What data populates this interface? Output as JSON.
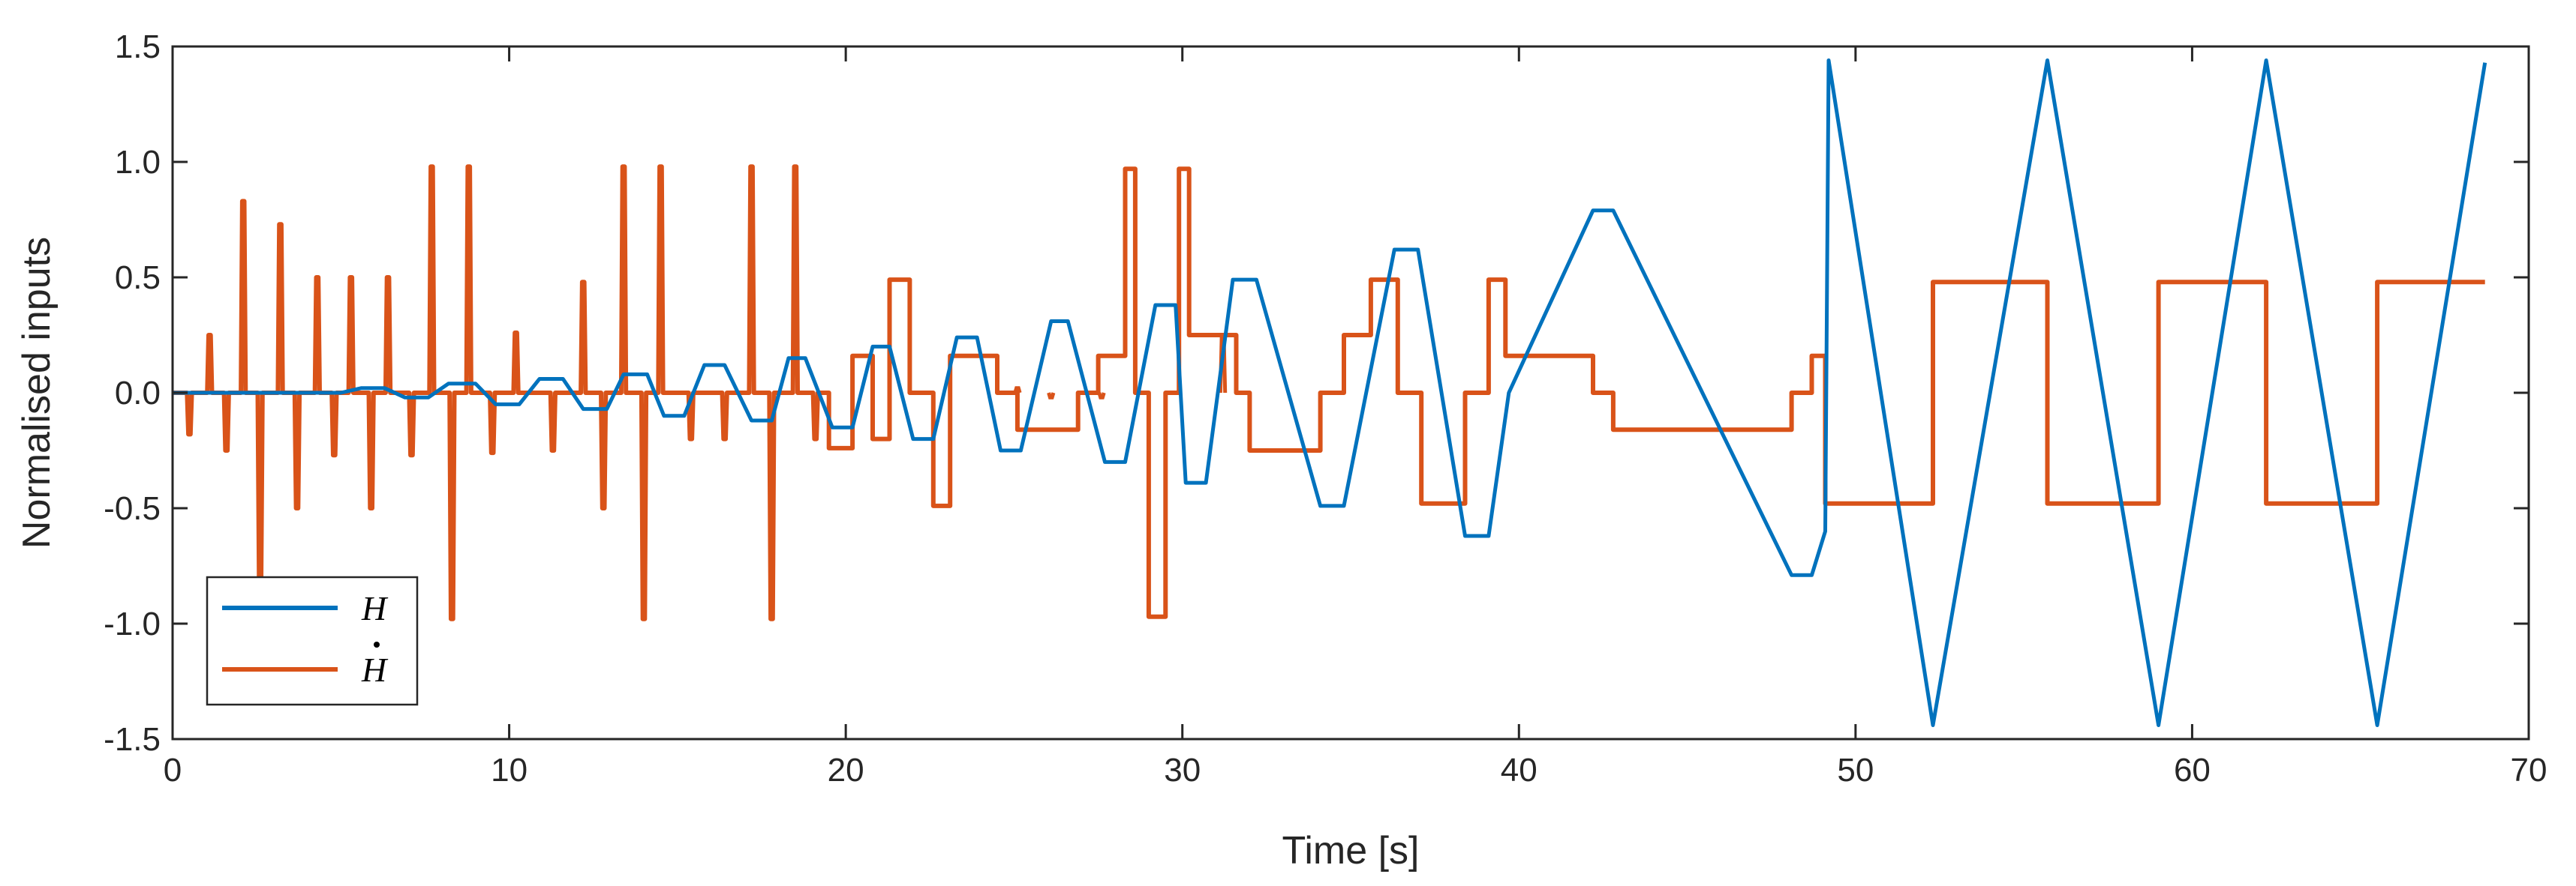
{
  "chart_data": {
    "type": "line",
    "title": "",
    "xlabel": "Time [s]",
    "ylabel": "Normalised inputs",
    "xlim": [
      0,
      70
    ],
    "ylim": [
      -1.5,
      1.5
    ],
    "xticks": [
      0,
      10,
      20,
      30,
      40,
      50,
      60,
      70
    ],
    "xtick_labels": [
      "0",
      "10",
      "20",
      "30",
      "40",
      "50",
      "60",
      "70"
    ],
    "yticks": [
      -1.5,
      -1.0,
      -0.5,
      0.0,
      0.5,
      1.0,
      1.5
    ],
    "ytick_labels": [
      "-1.5",
      "-1.0",
      "-0.5",
      "0.0",
      "0.5",
      "1.0",
      "1.5"
    ],
    "grid": false,
    "legend_location": "bottom-left",
    "series": [
      {
        "name": "H",
        "legend_label": "H",
        "color": "#0072BD",
        "points": [
          [
            0,
            0
          ],
          [
            5,
            0
          ],
          [
            5.6,
            0.02
          ],
          [
            6.3,
            0.02
          ],
          [
            6.9,
            -0.02
          ],
          [
            7.6,
            -0.02
          ],
          [
            8.2,
            0.04
          ],
          [
            9,
            0.04
          ],
          [
            9.6,
            -0.05
          ],
          [
            10.3,
            -0.05
          ],
          [
            10.9,
            0.06
          ],
          [
            11.6,
            0.06
          ],
          [
            12.2,
            -0.07
          ],
          [
            12.9,
            -0.07
          ],
          [
            13.4,
            0.08
          ],
          [
            14.1,
            0.08
          ],
          [
            14.6,
            -0.1
          ],
          [
            15.2,
            -0.1
          ],
          [
            15.8,
            0.12
          ],
          [
            16.4,
            0.12
          ],
          [
            17.2,
            -0.12
          ],
          [
            17.8,
            -0.12
          ],
          [
            18.3,
            0.15
          ],
          [
            18.8,
            0.15
          ],
          [
            19.6,
            -0.15
          ],
          [
            20.2,
            -0.15
          ],
          [
            20.8,
            0.2
          ],
          [
            21.3,
            0.2
          ],
          [
            22,
            -0.2
          ],
          [
            22.6,
            -0.2
          ],
          [
            23.3,
            0.24
          ],
          [
            23.9,
            0.24
          ],
          [
            24.6,
            -0.25
          ],
          [
            25.2,
            -0.25
          ],
          [
            26.1,
            0.31
          ],
          [
            26.6,
            0.31
          ],
          [
            27.7,
            -0.3
          ],
          [
            28.3,
            -0.3
          ],
          [
            29.2,
            0.38
          ],
          [
            29.8,
            0.38
          ],
          [
            30.1,
            -0.39
          ],
          [
            30.7,
            -0.39
          ],
          [
            31.5,
            0.49
          ],
          [
            32.2,
            0.49
          ],
          [
            34.1,
            -0.49
          ],
          [
            34.8,
            -0.49
          ],
          [
            36.3,
            0.62
          ],
          [
            37,
            0.62
          ],
          [
            38.4,
            -0.62
          ],
          [
            39.1,
            -0.62
          ],
          [
            39.7,
            0
          ],
          [
            42.2,
            0.79
          ],
          [
            42.8,
            0.79
          ],
          [
            48.1,
            -0.79
          ],
          [
            48.7,
            -0.79
          ],
          [
            49.1,
            -0.6
          ],
          [
            49.2,
            1.44
          ],
          [
            52.3,
            -1.44
          ],
          [
            55.7,
            1.44
          ],
          [
            59,
            -1.44
          ],
          [
            62.2,
            1.44
          ],
          [
            65.5,
            -1.44
          ],
          [
            68.7,
            1.43
          ]
        ]
      },
      {
        "name": "H-dot",
        "legend_label": "H",
        "color": "#D95319",
        "spikes": [
          [
            1.1,
            0.25
          ],
          [
            2.1,
            0.83
          ],
          [
            3.2,
            0.73
          ],
          [
            4.3,
            0.5
          ],
          [
            5.3,
            0.5
          ],
          [
            6.4,
            0.5
          ],
          [
            7.7,
            0.98
          ],
          [
            8.8,
            0.98
          ],
          [
            10.2,
            0.26
          ],
          [
            12.2,
            0.48
          ],
          [
            13.4,
            0.98
          ],
          [
            14.5,
            0.98
          ],
          [
            17.2,
            0.98
          ],
          [
            18.5,
            0.98
          ],
          [
            0.5,
            -0.18
          ],
          [
            1.6,
            -0.25
          ],
          [
            2.6,
            -0.82
          ],
          [
            3.7,
            -0.5
          ],
          [
            4.8,
            -0.27
          ],
          [
            5.9,
            -0.5
          ],
          [
            7.1,
            -0.27
          ],
          [
            8.3,
            -0.98
          ],
          [
            9.5,
            -0.26
          ],
          [
            11.3,
            -0.25
          ],
          [
            12.8,
            -0.5
          ],
          [
            14,
            -0.98
          ],
          [
            15.4,
            -0.2
          ],
          [
            16.4,
            -0.2
          ],
          [
            17.8,
            -0.98
          ],
          [
            19.1,
            -0.2
          ],
          [
            25.1,
            0.02
          ],
          [
            26.1,
            -0.02
          ],
          [
            27.6,
            -0.02
          ],
          [
            31.2,
            0.25
          ]
        ],
        "steps": [
          [
            0,
            0
          ],
          [
            19.5,
            0
          ],
          [
            19.5,
            -0.24
          ],
          [
            20.2,
            -0.24
          ],
          [
            20.2,
            0.16
          ],
          [
            20.8,
            0.16
          ],
          [
            20.8,
            -0.2
          ],
          [
            21.3,
            -0.2
          ],
          [
            21.3,
            0.49
          ],
          [
            21.9,
            0.49
          ],
          [
            21.9,
            0
          ],
          [
            22.6,
            0
          ],
          [
            22.6,
            -0.49
          ],
          [
            23.1,
            -0.49
          ],
          [
            23.1,
            0.16
          ],
          [
            24.5,
            0.16
          ],
          [
            24.5,
            0
          ],
          [
            25.1,
            0
          ],
          [
            25.1,
            -0.16
          ],
          [
            26.9,
            -0.16
          ],
          [
            26.9,
            0
          ],
          [
            27.5,
            0
          ],
          [
            27.5,
            0.16
          ],
          [
            28.3,
            0.16
          ],
          [
            28.3,
            0.97
          ],
          [
            28.6,
            0.97
          ],
          [
            28.6,
            0
          ],
          [
            29,
            0
          ],
          [
            29,
            -0.97
          ],
          [
            29.5,
            -0.97
          ],
          [
            29.5,
            0
          ],
          [
            29.9,
            0
          ],
          [
            29.9,
            0.97
          ],
          [
            30.2,
            0.97
          ],
          [
            30.2,
            0.25
          ],
          [
            31.6,
            0.25
          ],
          [
            31.6,
            0
          ],
          [
            32,
            0
          ],
          [
            32,
            -0.25
          ],
          [
            34.1,
            -0.25
          ],
          [
            34.1,
            0
          ],
          [
            34.8,
            0
          ],
          [
            34.8,
            0.25
          ],
          [
            35.6,
            0.25
          ],
          [
            35.6,
            0.49
          ],
          [
            36.4,
            0.49
          ],
          [
            36.4,
            0
          ],
          [
            37.1,
            0
          ],
          [
            37.1,
            -0.48
          ],
          [
            38.4,
            -0.48
          ],
          [
            38.4,
            0
          ],
          [
            39.1,
            0
          ],
          [
            39.1,
            0.49
          ],
          [
            39.6,
            0.49
          ],
          [
            39.6,
            0.16
          ],
          [
            42.2,
            0.16
          ],
          [
            42.2,
            0
          ],
          [
            42.8,
            0
          ],
          [
            42.8,
            -0.16
          ],
          [
            48.1,
            -0.16
          ],
          [
            48.1,
            0
          ],
          [
            48.7,
            0
          ],
          [
            48.7,
            0.16
          ],
          [
            49.1,
            0.16
          ],
          [
            49.1,
            -0.48
          ],
          [
            52.3,
            -0.48
          ],
          [
            52.3,
            0.48
          ],
          [
            55.7,
            0.48
          ],
          [
            55.7,
            -0.48
          ],
          [
            59,
            -0.48
          ],
          [
            59,
            0.48
          ],
          [
            62.2,
            0.48
          ],
          [
            62.2,
            -0.48
          ],
          [
            65.5,
            -0.48
          ],
          [
            65.5,
            0.48
          ],
          [
            68.7,
            0.48
          ]
        ]
      }
    ]
  }
}
